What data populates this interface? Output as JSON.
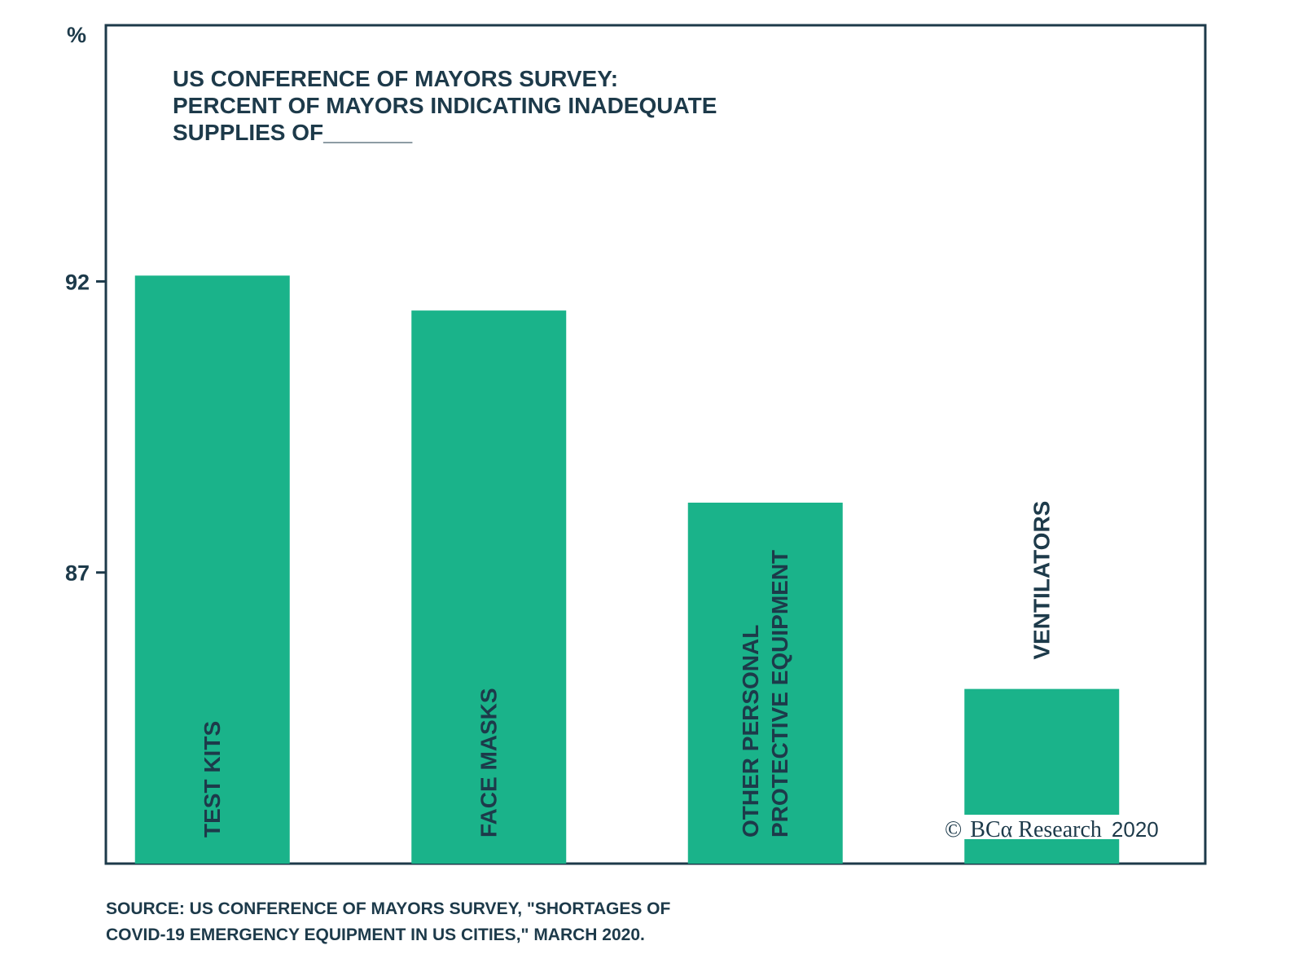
{
  "chart_data": {
    "type": "bar",
    "title_lines": [
      "US CONFERENCE OF MAYORS SURVEY:",
      "PERCENT OF MAYORS INDICATING INADEQUATE",
      "SUPPLIES OF_______"
    ],
    "ylabel": "%",
    "categories": [
      [
        "TEST KITS"
      ],
      [
        "FACE MASKS"
      ],
      [
        "OTHER PERSONAL",
        "PROTECTIVE EQUIPMENT"
      ],
      [
        "VENTILATORS"
      ]
    ],
    "values": [
      92.1,
      91.5,
      88.2,
      85.0
    ],
    "ylim": [
      82,
      96.4
    ],
    "yticks": [
      "92",
      "87"
    ],
    "ytick_values": [
      92,
      87
    ],
    "grid": false,
    "bar_color": "#1ab38a",
    "frame_color": "#1d3a4a"
  },
  "source_lines": [
    "SOURCE: US CONFERENCE OF MAYORS SURVEY, \"SHORTAGES OF",
    "COVID-19 EMERGENCY EQUIPMENT IN US CITIES,\" MARCH 2020."
  ],
  "copyright": {
    "symbol": "©",
    "brand": "BCα Research",
    "year": "2020"
  }
}
